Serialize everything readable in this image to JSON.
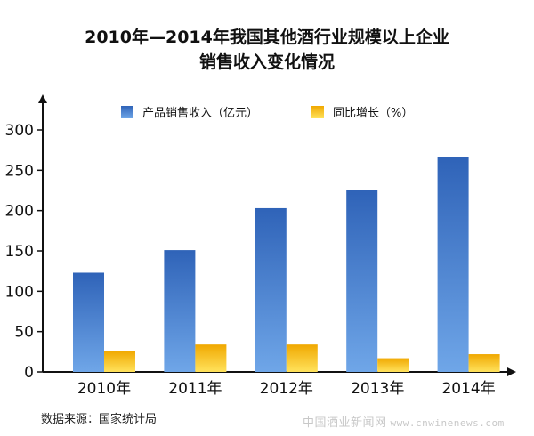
{
  "chart_data": {
    "type": "bar",
    "title_line1": "2010年—2014年我国其他酒行业规模以上企业",
    "title_line2": "销售收入变化情况",
    "categories": [
      "2010年",
      "2011年",
      "2012年",
      "2013年",
      "2014年"
    ],
    "series": [
      {
        "name": "产品销售收入（亿元）",
        "values": [
          123,
          151,
          203,
          225,
          266
        ],
        "color": "#4a7fd4"
      },
      {
        "name": "同比增长（%）",
        "values": [
          26,
          34,
          34,
          17,
          22
        ],
        "color": "#f6c21a"
      }
    ],
    "yticks": [
      "0",
      "50",
      "100",
      "150",
      "200",
      "250",
      "300"
    ],
    "ylim": [
      0,
      300
    ],
    "legend": "top",
    "grid": false
  },
  "source": "数据来源：国家统计局",
  "watermark": {
    "cn": "中国酒业新闻网",
    "url": "www.cnwinenews.com"
  }
}
